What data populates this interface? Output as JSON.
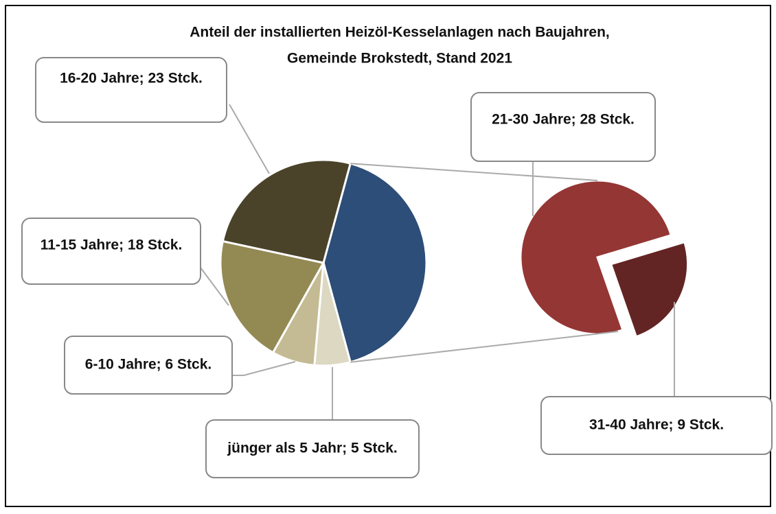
{
  "chart_data": {
    "type": "pie_of_pie",
    "title": [
      "Anteil der installierten Heizöl-Kesselanlagen nach Baujahren,",
      "Gemeinde Brokstedt, Stand 2021"
    ],
    "primary": {
      "values": [
        5,
        6,
        18,
        23
      ],
      "value_labels": [
        "jünger als 5 Jahr; 5 Stck.",
        "6-10 Jahre; 6 Stck.",
        "11-15 Jahre; 18 Stck.",
        "16-20 Jahre; 23 Stck."
      ],
      "colors": [
        "#ddd8c2",
        "#c4bb94",
        "#938953",
        "#4a432a"
      ]
    },
    "secondary": {
      "values": [
        28,
        9
      ],
      "value_labels": [
        "21-30 Jahre; 28 Stck.",
        "31-40 Jahre; 9 Stck."
      ],
      "colors": [
        "#943634",
        "#632523"
      ]
    },
    "other_color": "#2c4e78"
  }
}
